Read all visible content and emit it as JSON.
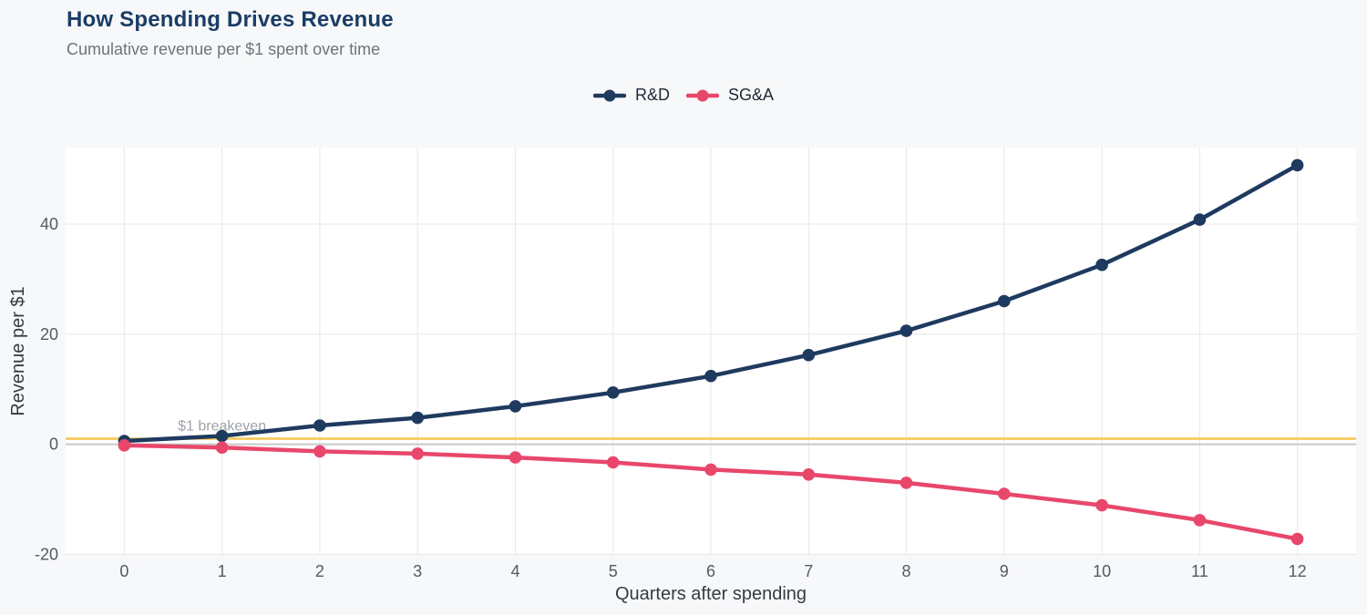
{
  "chart_data": {
    "type": "line",
    "title": "How Spending Drives Revenue",
    "subtitle": "Cumulative revenue per $1 spent over time",
    "xlabel": "Quarters after spending",
    "ylabel": "Revenue per $1",
    "x": [
      0,
      1,
      2,
      3,
      4,
      5,
      6,
      7,
      8,
      9,
      10,
      11,
      12
    ],
    "series": [
      {
        "name": "R&D",
        "color": "#1e3a5f",
        "values": [
          0.6,
          1.5,
          3.4,
          4.8,
          6.9,
          9.4,
          12.4,
          16.2,
          20.6,
          26.0,
          32.6,
          40.8,
          50.7
        ]
      },
      {
        "name": "SG&A",
        "color": "#e8476b",
        "values": [
          -0.2,
          -0.6,
          -1.3,
          -1.7,
          -2.4,
          -3.3,
          -4.6,
          -5.5,
          -7.0,
          -9.0,
          -11.1,
          -13.8,
          -17.2
        ]
      }
    ],
    "x_ticks": [
      0,
      1,
      2,
      3,
      4,
      5,
      6,
      7,
      8,
      9,
      10,
      11,
      12
    ],
    "y_ticks": [
      -20,
      0,
      20,
      40
    ],
    "x_range": [
      -0.6,
      12.6
    ],
    "y_range": [
      -20.1,
      53.9
    ],
    "grid": true,
    "legend_position": "top-center",
    "annotation": {
      "text": "$1 breakeven",
      "x": 1,
      "y": 1,
      "offset_y": -9
    },
    "reference_lines": [
      {
        "label": "zero",
        "y": 0,
        "color": "#c8c9cb",
        "width": 2
      },
      {
        "label": "breakeven",
        "y": 1,
        "color": "#f6c64e",
        "width": 2.5
      }
    ],
    "theme": {
      "page_bg": "#f7f8fa",
      "plot_bg": "#ffffff",
      "grid_color": "#e7e7e9",
      "title_color": "#1b3d66",
      "subtitle_color": "#6e7479",
      "tick_label_color": "#545a60",
      "axis_title_color": "#363b40",
      "legend_text_color": "#242936",
      "annotation_color": "#9ea3a8"
    }
  }
}
